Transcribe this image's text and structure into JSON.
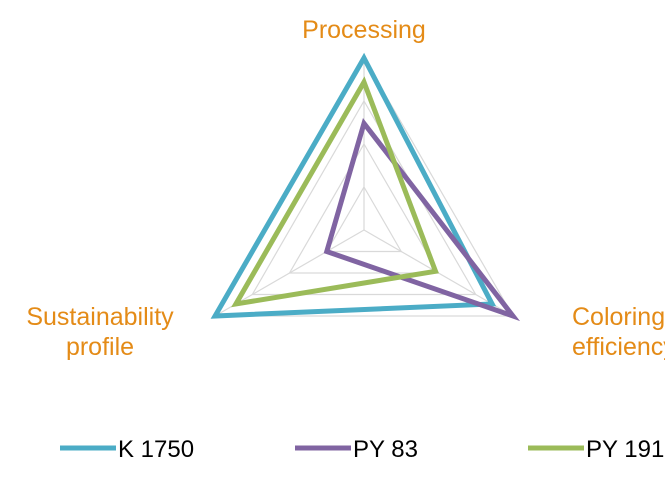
{
  "chart_data": {
    "type": "radar",
    "axes": [
      {
        "label_lines": [
          "Processing"
        ]
      },
      {
        "label_lines": [
          "Coloring",
          "efficiency"
        ]
      },
      {
        "label_lines": [
          "Sustainability",
          "profile"
        ]
      }
    ],
    "rmax": 1.0,
    "grid_levels": [
      0.25,
      0.5,
      0.75,
      1.0
    ],
    "grid": true,
    "legend_position": "bottom",
    "series": [
      {
        "name": "K 1750",
        "color": "#4bacc6",
        "values": [
          1.0,
          0.86,
          1.0
        ]
      },
      {
        "name": "PY 83",
        "color": "#8064a2",
        "values": [
          0.62,
          1.0,
          0.25
        ]
      },
      {
        "name": "PY 191",
        "color": "#9bbb59",
        "values": [
          0.86,
          0.48,
          0.86
        ]
      }
    ],
    "colors": {
      "axis_label": "#e48b17",
      "grid": "#d9d9d9",
      "legend_text": "#000000"
    }
  }
}
